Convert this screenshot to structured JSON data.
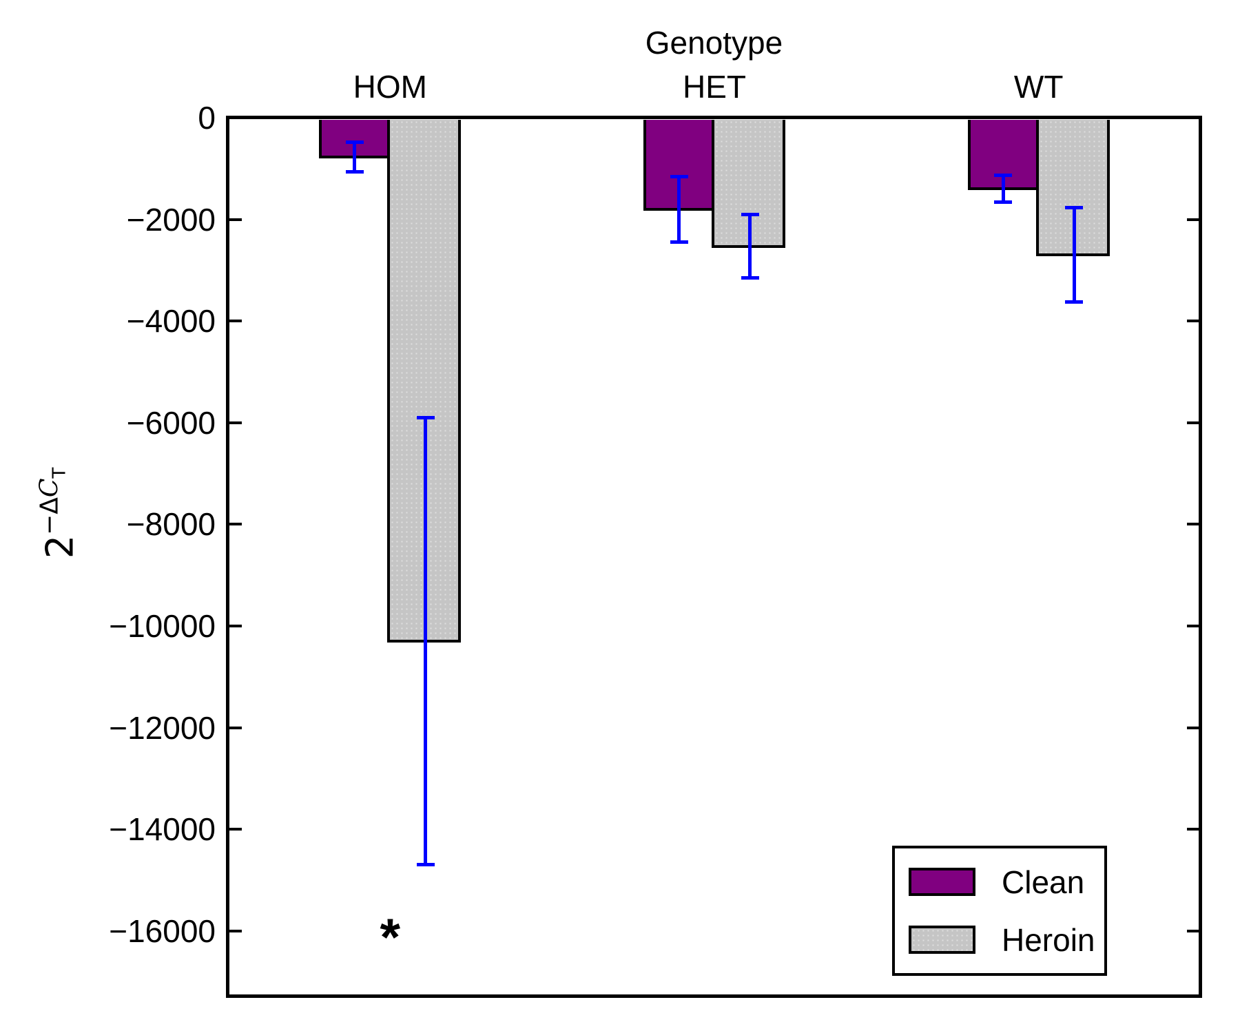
{
  "figure": {
    "title": "Genotype",
    "ylabel": {
      "base": "2",
      "sup": "−Δ",
      "var": "C",
      "sub": "T"
    }
  },
  "chart_data": {
    "type": "bar",
    "title": "Genotype",
    "xlabel": "",
    "ylabel": "2^(−ΔC_T)",
    "categories": [
      "HOM",
      "HET",
      "WT"
    ],
    "series": [
      {
        "name": "Clean",
        "color": "#800080",
        "values": [
          -770,
          -1800,
          -1390
        ],
        "errors": [
          290,
          645,
          265
        ]
      },
      {
        "name": "Heroin",
        "color": "#C5C5C5",
        "values": [
          -10300,
          -2530,
          -2700
        ],
        "errors": [
          4400,
          620,
          930
        ]
      }
    ],
    "error_bar_color": "#0000FF",
    "ylim": [
      -17250,
      0
    ],
    "yticks": [
      0,
      -2000,
      -4000,
      -6000,
      -8000,
      -10000,
      -12000,
      -14000,
      -16000
    ],
    "ytick_labels": [
      "0",
      "−2000",
      "−4000",
      "−6000",
      "−8000",
      "−10000",
      "−12000",
      "−14000",
      "−16000"
    ],
    "grid": false,
    "legend_position": "lower right",
    "legend": [
      {
        "label": "Clean"
      },
      {
        "label": "Heroin"
      }
    ],
    "annotation": {
      "text": "*",
      "category": "HOM",
      "y": -15970
    }
  }
}
